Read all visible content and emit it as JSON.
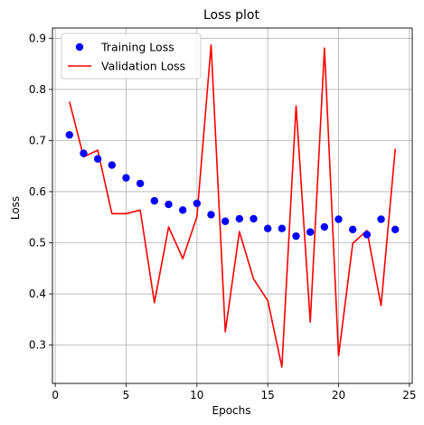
{
  "chart_data": {
    "type": "line",
    "title": "Loss plot",
    "xlabel": "Epochs",
    "ylabel": "Loss",
    "xlim": [
      -0.2,
      25.2
    ],
    "ylim": [
      0.225,
      0.92
    ],
    "xticks": [
      0,
      5,
      10,
      15,
      20,
      25
    ],
    "yticks": [
      0.3,
      0.4,
      0.5,
      0.6,
      0.7,
      0.8,
      0.9
    ],
    "grid": true,
    "legend_position": "top-left",
    "series": [
      {
        "name": "Training Loss",
        "style": "markers",
        "color": "#0000ff",
        "x": [
          1,
          2,
          3,
          4,
          5,
          6,
          7,
          8,
          9,
          10,
          11,
          12,
          13,
          14,
          15,
          16,
          17,
          18,
          19,
          20,
          21,
          22,
          23,
          24
        ],
        "values": [
          0.711,
          0.675,
          0.664,
          0.652,
          0.627,
          0.616,
          0.582,
          0.575,
          0.564,
          0.577,
          0.555,
          0.542,
          0.547,
          0.547,
          0.528,
          0.528,
          0.513,
          0.521,
          0.531,
          0.546,
          0.526,
          0.516,
          0.546,
          0.526
        ]
      },
      {
        "name": "Validation Loss",
        "style": "line",
        "color": "#ff0000",
        "x": [
          1,
          2,
          3,
          4,
          5,
          6,
          7,
          8,
          9,
          10,
          11,
          12,
          13,
          14,
          15,
          16,
          17,
          18,
          19,
          20,
          21,
          22,
          23,
          24
        ],
        "values": [
          0.776,
          0.668,
          0.681,
          0.557,
          0.557,
          0.564,
          0.383,
          0.531,
          0.469,
          0.551,
          0.887,
          0.326,
          0.522,
          0.429,
          0.387,
          0.257,
          0.768,
          0.345,
          0.881,
          0.279,
          0.499,
          0.524,
          0.377,
          0.684
        ]
      }
    ]
  }
}
